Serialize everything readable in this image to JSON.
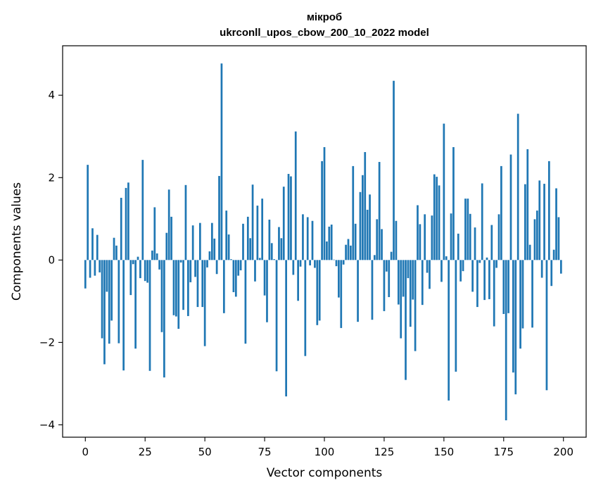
{
  "chart_data": {
    "type": "bar",
    "title_line1": "мікроб",
    "title_line2": "ukrconll_upos_cbow_200_10_2022 model",
    "xlabel": "Vector components",
    "ylabel": "Components values",
    "xlim": [
      -9.5,
      209.5
    ],
    "ylim": [
      -4.3,
      5.2
    ],
    "xticks": [
      0,
      25,
      50,
      75,
      100,
      125,
      150,
      175,
      200
    ],
    "yticks": [
      -4,
      -2,
      0,
      2,
      4
    ],
    "ytick_labels": [
      "−4",
      "−2",
      "0",
      "2",
      "4"
    ],
    "grid": false,
    "bar_color": "#1f77b4",
    "values": [
      -0.69,
      2.31,
      -0.43,
      0.77,
      -0.38,
      0.61,
      -0.3,
      -1.9,
      -2.53,
      -0.77,
      -2.03,
      -1.47,
      0.54,
      0.35,
      -2.02,
      1.51,
      -2.68,
      1.75,
      1.88,
      -0.85,
      -0.1,
      -2.15,
      0.08,
      -0.44,
      2.43,
      -0.51,
      -0.55,
      -2.69,
      0.23,
      1.28,
      0.16,
      -0.23,
      -1.75,
      -2.85,
      0.66,
      1.71,
      1.05,
      -1.34,
      -1.37,
      -1.67,
      -0.06,
      -1.21,
      1.82,
      -1.36,
      -0.54,
      0.84,
      -0.41,
      -1.14,
      0.9,
      -1.14,
      -2.09,
      -0.18,
      0.21,
      0.9,
      0.52,
      -0.34,
      2.04,
      4.77,
      -1.29,
      1.2,
      0.62,
      0.02,
      -0.78,
      -0.89,
      -0.38,
      -0.25,
      0.88,
      -2.03,
      1.05,
      0.53,
      1.83,
      -0.52,
      1.32,
      0.05,
      1.49,
      -0.86,
      -1.51,
      0.98,
      0.41,
      0.02,
      -2.7,
      0.8,
      0.53,
      1.78,
      -3.31,
      2.09,
      2.03,
      -0.36,
      3.12,
      -0.99,
      -0.16,
      1.11,
      -2.33,
      1.04,
      -0.13,
      0.95,
      -0.19,
      -1.58,
      -1.47,
      2.4,
      2.74,
      0.45,
      0.81,
      0.86,
      0.01,
      -0.15,
      -0.91,
      -1.65,
      -0.11,
      0.37,
      0.51,
      0.35,
      2.28,
      0.88,
      -1.5,
      1.65,
      2.06,
      2.62,
      1.22,
      1.59,
      -1.45,
      0.12,
      0.99,
      2.38,
      0.75,
      -1.24,
      -0.28,
      -0.9,
      0.2,
      4.35,
      0.95,
      -1.08,
      -1.9,
      -0.89,
      -2.91,
      -0.44,
      -1.62,
      -0.96,
      -2.21,
      1.33,
      0.87,
      -1.09,
      1.11,
      -0.31,
      -0.7,
      1.08,
      2.08,
      2.02,
      1.81,
      -0.53,
      3.31,
      0.09,
      -3.41,
      1.13,
      2.74,
      -2.71,
      0.64,
      -0.52,
      -0.27,
      1.49,
      1.49,
      1.12,
      -0.77,
      0.79,
      -1.14,
      -0.07,
      1.86,
      -0.97,
      0.06,
      -0.95,
      0.85,
      -1.61,
      -0.19,
      1.11,
      2.28,
      -1.31,
      -3.89,
      -1.29,
      2.56,
      -2.73,
      -3.26,
      3.55,
      -2.15,
      -1.66,
      1.84,
      2.69,
      0.37,
      -1.64,
      0.99,
      1.2,
      1.93,
      -0.43,
      1.85,
      -3.16,
      2.4,
      -0.63,
      0.25,
      1.74,
      1.04,
      -0.33
    ]
  }
}
